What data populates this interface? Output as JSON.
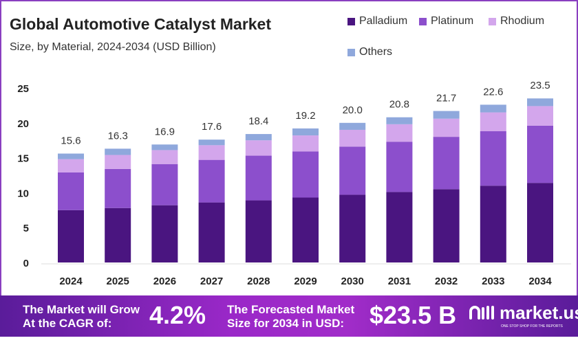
{
  "chart_data": {
    "type": "bar",
    "stacked": true,
    "title": "Global Automotive Catalyst Market",
    "subtitle": "Size, by Material, 2024-2034 (USD Billion)",
    "categories": [
      "2024",
      "2025",
      "2026",
      "2027",
      "2028",
      "2029",
      "2030",
      "2031",
      "2032",
      "2033",
      "2034"
    ],
    "series": [
      {
        "name": "Palladium",
        "color": "#4a1580",
        "values": [
          7.5,
          7.8,
          8.2,
          8.6,
          8.9,
          9.3,
          9.7,
          10.1,
          10.5,
          11.0,
          11.4
        ]
      },
      {
        "name": "Platinum",
        "color": "#8c4fcc",
        "values": [
          5.4,
          5.6,
          5.9,
          6.1,
          6.4,
          6.6,
          6.9,
          7.2,
          7.5,
          7.8,
          8.2
        ]
      },
      {
        "name": "Rhodium",
        "color": "#d3a6ec",
        "values": [
          1.9,
          2.0,
          2.0,
          2.1,
          2.2,
          2.3,
          2.4,
          2.5,
          2.6,
          2.7,
          2.8
        ]
      },
      {
        "name": "Others",
        "color": "#8fa8dc",
        "values": [
          0.8,
          0.9,
          0.8,
          0.8,
          0.9,
          1.0,
          1.0,
          1.0,
          1.1,
          1.1,
          1.1
        ]
      }
    ],
    "totals": [
      "15.6",
      "16.3",
      "16.9",
      "17.6",
      "18.4",
      "19.2",
      "20.0",
      "20.8",
      "21.7",
      "22.6",
      "23.5"
    ],
    "yticks": [
      0,
      5,
      10,
      15,
      20,
      25
    ],
    "ylim": [
      0,
      25
    ],
    "grid": false,
    "legend": "top-right"
  },
  "footer": {
    "cagr_text_1": "The Market will Grow",
    "cagr_text_2": "At the CAGR of:",
    "cagr_value": "4.2%",
    "forecast_text_1": "The Forecasted Market",
    "forecast_text_2": "Size for 2034 in USD:",
    "forecast_value": "$23.5 B",
    "logo_name": "market.us",
    "logo_tagline": "ONE STOP SHOP FOR THE REPORTS"
  }
}
